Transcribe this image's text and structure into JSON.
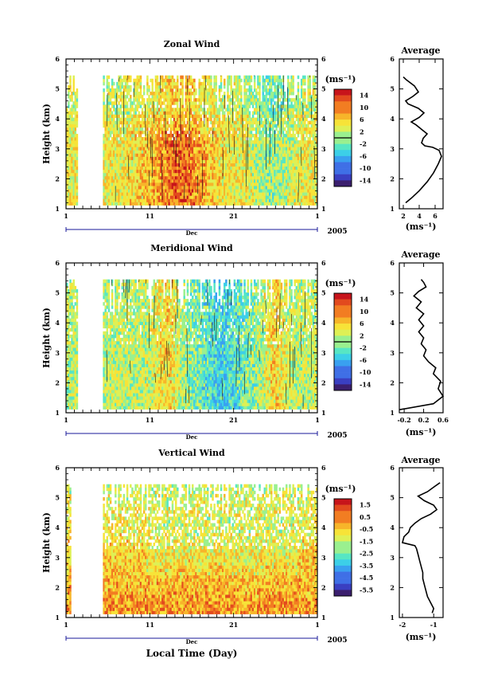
{
  "chart_data": [
    {
      "type": "heatmap",
      "title": "Zonal Wind",
      "ylabel": "Height (km)",
      "ylim": [
        1,
        6
      ],
      "y_ticks": [
        "1",
        "2",
        "3",
        "4",
        "5",
        "6"
      ],
      "x_ticks": [
        "1",
        "11",
        "21",
        "1"
      ],
      "x_month": "Dec",
      "x_year": "2005",
      "colorbar": {
        "unit": "(ms⁻¹)",
        "ticks": [
          "14",
          "10",
          "6",
          "2",
          "-2",
          "-6",
          "-10",
          "-14"
        ],
        "range": [
          -16,
          16
        ]
      },
      "data_days": [
        1,
        2.4,
        5.5,
        31
      ],
      "profile": {
        "title": "Average",
        "xlabel": "(ms⁻¹)",
        "xlim": [
          1.5,
          7
        ],
        "x_ticks": [
          "2",
          "4",
          "6"
        ],
        "y_ticks": [
          "1",
          "2",
          "3",
          "4",
          "5",
          "6"
        ],
        "ylim": [
          1,
          6
        ],
        "points": [
          [
            2.3,
            1.2
          ],
          [
            3.0,
            1.35
          ],
          [
            4.0,
            1.6
          ],
          [
            5.0,
            1.9
          ],
          [
            5.8,
            2.2
          ],
          [
            6.4,
            2.5
          ],
          [
            6.8,
            2.75
          ],
          [
            6.5,
            2.95
          ],
          [
            5.7,
            3.05
          ],
          [
            4.7,
            3.1
          ],
          [
            4.3,
            3.2
          ],
          [
            4.5,
            3.35
          ],
          [
            5.0,
            3.5
          ],
          [
            4.3,
            3.65
          ],
          [
            3.6,
            3.8
          ],
          [
            3.0,
            3.9
          ],
          [
            4.0,
            4.05
          ],
          [
            4.6,
            4.2
          ],
          [
            3.9,
            4.35
          ],
          [
            2.6,
            4.5
          ],
          [
            2.3,
            4.6
          ],
          [
            3.2,
            4.75
          ],
          [
            3.9,
            4.9
          ],
          [
            3.4,
            5.1
          ],
          [
            2.4,
            5.3
          ],
          [
            2.0,
            5.4
          ]
        ]
      }
    },
    {
      "type": "heatmap",
      "title": "Meridional Wind",
      "ylabel": "Height (km)",
      "ylim": [
        1,
        6
      ],
      "y_ticks": [
        "1",
        "2",
        "3",
        "4",
        "5",
        "6"
      ],
      "x_ticks": [
        "1",
        "11",
        "21",
        "1"
      ],
      "x_month": "Dec",
      "x_year": "2005",
      "colorbar": {
        "unit": "(ms⁻¹)",
        "ticks": [
          "14",
          "10",
          "6",
          "2",
          "-2",
          "-6",
          "-10",
          "-14"
        ],
        "range": [
          -16,
          16
        ]
      },
      "data_days": [
        1,
        2.4,
        5.5,
        31
      ],
      "profile": {
        "title": "Average",
        "xlabel": "(ms⁻¹)",
        "xlim": [
          -0.3,
          0.6
        ],
        "x_ticks": [
          "-0.2",
          "0.2",
          "0.6"
        ],
        "y_ticks": [
          "1",
          "2",
          "3",
          "4",
          "5",
          "6"
        ],
        "ylim": [
          1,
          6
        ],
        "points": [
          [
            -0.3,
            1.1
          ],
          [
            0.4,
            1.3
          ],
          [
            0.6,
            1.55
          ],
          [
            0.5,
            1.8
          ],
          [
            0.55,
            2.05
          ],
          [
            0.4,
            2.3
          ],
          [
            0.45,
            2.5
          ],
          [
            0.3,
            2.7
          ],
          [
            0.2,
            2.9
          ],
          [
            0.25,
            3.1
          ],
          [
            0.15,
            3.3
          ],
          [
            0.2,
            3.5
          ],
          [
            0.1,
            3.7
          ],
          [
            0.2,
            3.9
          ],
          [
            0.1,
            4.1
          ],
          [
            0.2,
            4.3
          ],
          [
            0.05,
            4.5
          ],
          [
            0.15,
            4.7
          ],
          [
            0.0,
            4.9
          ],
          [
            0.1,
            5.05
          ],
          [
            0.25,
            5.2
          ],
          [
            0.2,
            5.35
          ],
          [
            0.15,
            5.45
          ]
        ]
      }
    },
    {
      "type": "heatmap",
      "title": "Vertical Wind",
      "ylabel": "Height (km)",
      "xlabel": "Local Time (Day)",
      "ylim": [
        1,
        6
      ],
      "y_ticks": [
        "1",
        "2",
        "3",
        "4",
        "5",
        "6"
      ],
      "x_ticks": [
        "1",
        "11",
        "21",
        "1"
      ],
      "x_month": "Dec",
      "x_year": "2005",
      "colorbar": {
        "unit": "(ms⁻¹)",
        "ticks": [
          "1.5",
          "0.5",
          "-0.5",
          "-1.5",
          "-2.5",
          "-3.5",
          "-4.5",
          "-5.5"
        ],
        "range": [
          -6,
          2
        ]
      },
      "data_days": [
        1,
        1.5,
        5.5,
        31
      ],
      "profile": {
        "title": "Average",
        "xlabel": "(ms⁻¹)",
        "xlim": [
          -2.1,
          -0.7
        ],
        "x_ticks": [
          "-2",
          "-1"
        ],
        "y_ticks": [
          "1",
          "2",
          "3",
          "4",
          "5",
          "6"
        ],
        "ylim": [
          1,
          6
        ],
        "points": [
          [
            -1.05,
            1.15
          ],
          [
            -1.0,
            1.3
          ],
          [
            -1.1,
            1.5
          ],
          [
            -1.2,
            1.7
          ],
          [
            -1.25,
            1.9
          ],
          [
            -1.3,
            2.1
          ],
          [
            -1.35,
            2.3
          ],
          [
            -1.35,
            2.5
          ],
          [
            -1.4,
            2.7
          ],
          [
            -1.45,
            2.9
          ],
          [
            -1.5,
            3.1
          ],
          [
            -1.55,
            3.3
          ],
          [
            -1.6,
            3.4
          ],
          [
            -2.0,
            3.5
          ],
          [
            -1.95,
            3.7
          ],
          [
            -1.8,
            3.85
          ],
          [
            -1.75,
            4.0
          ],
          [
            -1.6,
            4.15
          ],
          [
            -1.4,
            4.3
          ],
          [
            -1.1,
            4.45
          ],
          [
            -0.9,
            4.6
          ],
          [
            -1.0,
            4.75
          ],
          [
            -1.3,
            4.9
          ],
          [
            -1.5,
            5.05
          ],
          [
            -1.2,
            5.2
          ],
          [
            -1.0,
            5.35
          ],
          [
            -0.8,
            5.5
          ]
        ]
      }
    }
  ]
}
